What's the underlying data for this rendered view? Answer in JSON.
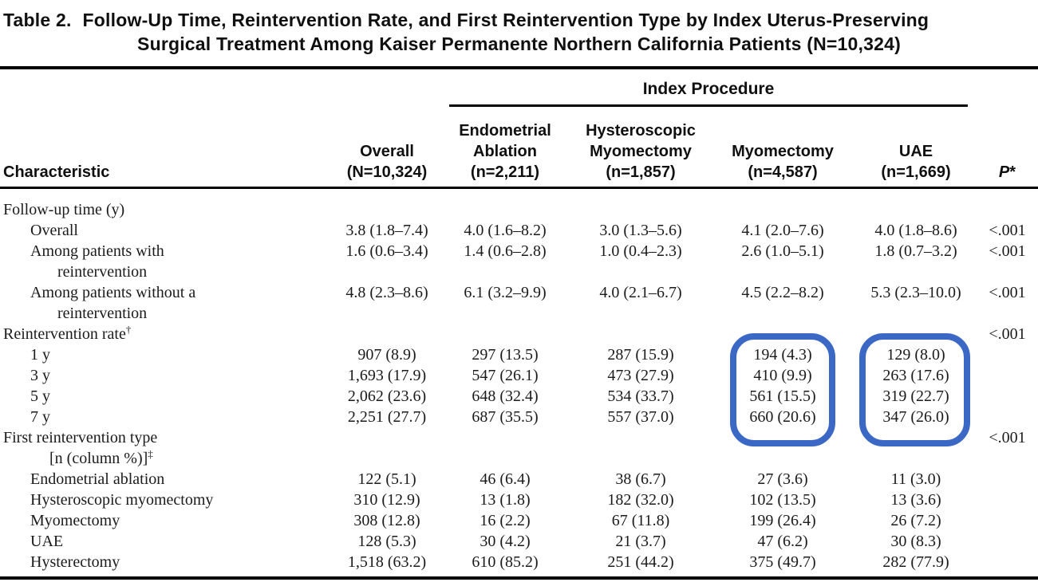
{
  "title": {
    "number": "Table 2.",
    "line1": "Follow-Up Time, Reintervention Rate, and First Reintervention Type by Index Uterus-Preserving",
    "line2": "Surgical Treatment Among Kaiser Permanente Northern California Patients (N=10,324)"
  },
  "header": {
    "span_label": "Index Procedure",
    "characteristic": "Characteristic",
    "columns": [
      [
        "Overall",
        "(N=10,324)"
      ],
      [
        "Endometrial",
        "Ablation",
        "(n=2,211)"
      ],
      [
        "Hysteroscopic",
        "Myomectomy",
        "(n=1,857)"
      ],
      [
        "Myomectomy",
        "(n=4,587)"
      ],
      [
        "UAE",
        "(n=1,669)"
      ]
    ],
    "p": {
      "label": "P",
      "sup": "*"
    }
  },
  "rows": [
    {
      "indent": 0,
      "lines": [
        [
          "Follow-up time (y)",
          ""
        ]
      ],
      "values": [
        "",
        "",
        "",
        "",
        ""
      ],
      "p": ""
    },
    {
      "indent": 1,
      "lines": [
        [
          "Overall",
          ""
        ]
      ],
      "values": [
        "3.8 (1.8–7.4)",
        "4.0 (1.6–8.2)",
        "3.0 (1.3–5.6)",
        "4.1 (2.0–7.6)",
        "4.0 (1.8–8.6)"
      ],
      "p": "<.001"
    },
    {
      "indent": 1,
      "lines": [
        [
          "Among patients with",
          ""
        ],
        [
          "reintervention",
          ""
        ]
      ],
      "values": [
        "1.6 (0.6–3.4)",
        "1.4 (0.6–2.8)",
        "1.0 (0.4–2.3)",
        "2.6 (1.0–5.1)",
        "1.8 (0.7–3.2)"
      ],
      "p": "<.001"
    },
    {
      "indent": 1,
      "lines": [
        [
          "Among patients without a",
          ""
        ],
        [
          "reintervention",
          ""
        ]
      ],
      "values": [
        "4.8 (2.3–8.6)",
        "6.1 (3.2–9.9)",
        "4.0 (2.1–6.7)",
        "4.5 (2.2–8.2)",
        "5.3 (2.3–10.0)"
      ],
      "p": "<.001"
    },
    {
      "indent": 0,
      "lines": [
        [
          "Reintervention rate",
          "†"
        ]
      ],
      "values": [
        "",
        "",
        "",
        "",
        ""
      ],
      "p": "<.001"
    },
    {
      "indent": 1,
      "lines": [
        [
          "1 y",
          ""
        ]
      ],
      "values": [
        "907 (8.9)",
        "297 (13.5)",
        "287 (15.9)",
        "194 (4.3)",
        "129 (8.0)"
      ],
      "p": ""
    },
    {
      "indent": 1,
      "lines": [
        [
          "3 y",
          ""
        ]
      ],
      "values": [
        "1,693 (17.9)",
        "547 (26.1)",
        "473 (27.9)",
        "410 (9.9)",
        "263 (17.6)"
      ],
      "p": ""
    },
    {
      "indent": 1,
      "lines": [
        [
          "5 y",
          ""
        ]
      ],
      "values": [
        "2,062 (23.6)",
        "648 (32.4)",
        "534 (33.7)",
        "561 (15.5)",
        "319 (22.7)"
      ],
      "p": ""
    },
    {
      "indent": 1,
      "lines": [
        [
          "7 y",
          ""
        ]
      ],
      "values": [
        "2,251 (27.7)",
        "687 (35.5)",
        "557 (37.0)",
        "660 (20.6)",
        "347 (26.0)"
      ],
      "p": ""
    },
    {
      "indent": 0,
      "lines": [
        [
          "First reintervention type",
          ""
        ],
        [
          "[n (column %)]",
          "‡"
        ]
      ],
      "values": [
        "",
        "",
        "",
        "",
        ""
      ],
      "p": "<.001"
    },
    {
      "indent": 1,
      "lines": [
        [
          "Endometrial ablation",
          ""
        ]
      ],
      "values": [
        "122 (5.1)",
        "46 (6.4)",
        "38 (6.7)",
        "27 (3.6)",
        "11 (3.0)"
      ],
      "p": ""
    },
    {
      "indent": 1,
      "lines": [
        [
          "Hysteroscopic myomectomy",
          ""
        ]
      ],
      "values": [
        "310 (12.9)",
        "13 (1.8)",
        "182 (32.0)",
        "102 (13.5)",
        "13 (3.6)"
      ],
      "p": ""
    },
    {
      "indent": 1,
      "lines": [
        [
          "Myomectomy",
          ""
        ]
      ],
      "values": [
        "308 (12.8)",
        "16 (2.2)",
        "67 (11.8)",
        "199 (26.4)",
        "26 (7.2)"
      ],
      "p": ""
    },
    {
      "indent": 1,
      "lines": [
        [
          "UAE",
          ""
        ]
      ],
      "values": [
        "128 (5.3)",
        "30 (4.2)",
        "21 (3.7)",
        "47 (6.2)",
        "30 (8.3)"
      ],
      "p": ""
    },
    {
      "indent": 1,
      "lines": [
        [
          "Hysterectomy",
          ""
        ]
      ],
      "values": [
        "1,518 (63.2)",
        "610 (85.2)",
        "251 (44.2)",
        "375 (49.7)",
        "282 (77.9)"
      ],
      "p": ""
    }
  ],
  "annotations": {
    "highlight_color": "#3A68C4",
    "boxes": [
      {
        "name": "annotation-box-myomectomy-rates",
        "column": "Myomectomy",
        "rows": [
          "1 y",
          "3 y",
          "5 y",
          "7 y"
        ]
      },
      {
        "name": "annotation-box-uae-rates",
        "column": "UAE",
        "rows": [
          "1 y",
          "3 y",
          "5 y",
          "7 y"
        ]
      }
    ]
  }
}
